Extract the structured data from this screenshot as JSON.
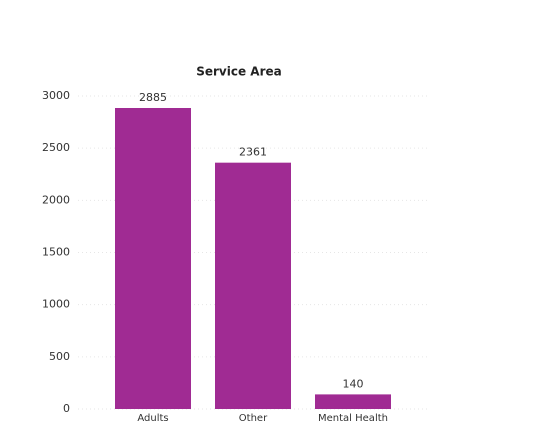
{
  "chart_data": {
    "type": "bar",
    "title": "Service Area",
    "categories": [
      "Adults",
      "Other",
      "Mental Health"
    ],
    "values": [
      2885,
      2361,
      140
    ],
    "color": "#a02b93",
    "ylim": [
      0,
      3000
    ],
    "yticks": [
      0,
      500,
      1000,
      1500,
      2000,
      2500,
      3000
    ],
    "grid": true
  }
}
